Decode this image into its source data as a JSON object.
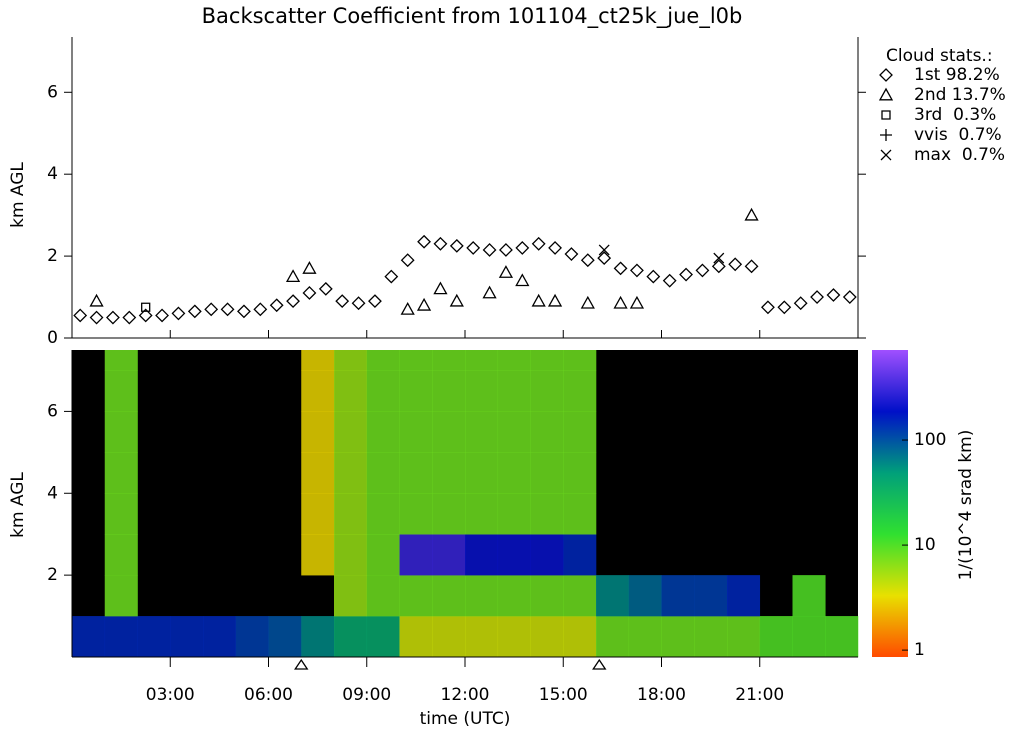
{
  "chart_data": [
    {
      "type": "scatter",
      "title": "Backscatter Coefficient from 101104_ct25k_jue_l0b",
      "ylabel": "km AGL",
      "xlim": [
        0,
        24
      ],
      "xticks": [
        {
          "value": 3,
          "label": "03:00"
        },
        {
          "value": 6,
          "label": "06:00"
        },
        {
          "value": 9,
          "label": "09:00"
        },
        {
          "value": 12,
          "label": "12:00"
        },
        {
          "value": 15,
          "label": "15:00"
        },
        {
          "value": 18,
          "label": "18:00"
        },
        {
          "value": 21,
          "label": "21:00"
        }
      ],
      "ylim": [
        0,
        7.35
      ],
      "yticks": [
        0,
        2,
        4,
        6
      ],
      "legend_title": "Cloud stats.:",
      "legend": "outside right",
      "x": [
        0.25,
        0.75,
        1.25,
        1.75,
        2.25,
        2.75,
        3.25,
        3.75,
        4.25,
        4.75,
        5.25,
        5.75,
        6.25,
        6.75,
        7.25,
        7.75,
        8.25,
        8.75,
        9.25,
        9.75,
        10.25,
        10.75,
        11.25,
        11.75,
        12.25,
        12.75,
        13.25,
        13.75,
        14.25,
        14.75,
        15.25,
        15.75,
        16.25,
        16.75,
        17.25,
        17.75,
        18.25,
        18.75,
        19.25,
        19.75,
        20.25,
        20.75,
        21.25,
        21.75,
        22.25,
        22.75,
        23.25,
        23.75
      ],
      "series": [
        {
          "name": "1st 98.2%",
          "symbol": "diamond",
          "color": "#000000",
          "values": [
            0.55,
            0.5,
            0.5,
            0.5,
            0.55,
            0.55,
            0.6,
            0.65,
            0.7,
            0.7,
            0.65,
            0.7,
            0.8,
            0.9,
            1.1,
            1.2,
            0.9,
            0.85,
            0.9,
            1.5,
            1.9,
            2.35,
            2.3,
            2.25,
            2.2,
            2.15,
            2.15,
            2.2,
            2.3,
            2.2,
            2.05,
            1.9,
            1.95,
            1.7,
            1.65,
            1.5,
            1.4,
            1.55,
            1.65,
            1.75,
            1.8,
            1.75,
            0.75,
            0.75,
            0.85,
            1.0,
            1.05,
            1.0
          ]
        },
        {
          "name": "2nd 13.7%",
          "symbol": "triangle",
          "color": "#000000",
          "values": [
            null,
            0.9,
            null,
            null,
            null,
            null,
            null,
            null,
            null,
            null,
            null,
            null,
            null,
            1.5,
            1.7,
            null,
            null,
            null,
            null,
            null,
            0.7,
            0.8,
            1.2,
            0.9,
            null,
            1.1,
            1.6,
            1.4,
            0.9,
            0.9,
            null,
            0.85,
            null,
            0.85,
            0.85,
            null,
            null,
            null,
            null,
            null,
            null,
            3.0,
            null,
            null,
            null,
            null,
            null,
            null
          ]
        },
        {
          "name": "3rd  0.3%",
          "symbol": "square",
          "color": "#000000",
          "values": [
            null,
            null,
            null,
            null,
            0.75,
            null,
            null,
            null,
            null,
            null,
            null,
            null,
            null,
            null,
            null,
            null,
            null,
            null,
            null,
            null,
            null,
            null,
            null,
            null,
            null,
            null,
            null,
            null,
            null,
            null,
            null,
            null,
            null,
            null,
            null,
            null,
            null,
            null,
            null,
            null,
            null,
            null,
            null,
            null,
            null,
            null,
            null,
            null
          ]
        },
        {
          "name": "vvis  0.7%",
          "symbol": "plus",
          "color": "#000000",
          "values": [
            null,
            null,
            null,
            null,
            null,
            null,
            null,
            null,
            null,
            null,
            null,
            null,
            null,
            null,
            null,
            null,
            null,
            null,
            null,
            null,
            null,
            null,
            null,
            null,
            null,
            null,
            null,
            null,
            null,
            null,
            null,
            null,
            null,
            null,
            null,
            null,
            null,
            null,
            null,
            null,
            null,
            null,
            null,
            null,
            null,
            null,
            null,
            null
          ]
        },
        {
          "name": "max  0.7%",
          "symbol": "cross",
          "color": "#000000",
          "values": [
            null,
            null,
            null,
            null,
            null,
            null,
            null,
            null,
            null,
            null,
            null,
            null,
            null,
            null,
            null,
            null,
            null,
            null,
            null,
            null,
            null,
            null,
            null,
            null,
            null,
            null,
            null,
            null,
            null,
            null,
            null,
            null,
            2.15,
            null,
            null,
            null,
            null,
            null,
            null,
            1.95,
            null,
            null,
            null,
            null,
            null,
            null,
            null,
            null
          ]
        }
      ]
    },
    {
      "type": "heatmap",
      "xlabel": "time (UTC)",
      "ylabel": "km AGL",
      "xlim": [
        0,
        24
      ],
      "xticks": [
        {
          "value": 3,
          "label": "03:00"
        },
        {
          "value": 6,
          "label": "06:00"
        },
        {
          "value": 9,
          "label": "09:00"
        },
        {
          "value": 12,
          "label": "12:00"
        },
        {
          "value": 15,
          "label": "15:00"
        },
        {
          "value": 18,
          "label": "18:00"
        },
        {
          "value": 21,
          "label": "21:00"
        }
      ],
      "ylim": [
        0,
        7.5
      ],
      "yticks": [
        2,
        4,
        6
      ],
      "background": "#000000",
      "x_edges": [
        0,
        1,
        2,
        3,
        4,
        5,
        6,
        7,
        8,
        9,
        10,
        11,
        12,
        13,
        14,
        15,
        16,
        17,
        18,
        19,
        20,
        21,
        22,
        23,
        24
      ],
      "y_edges": [
        0,
        1,
        2,
        3,
        4,
        5,
        6,
        7,
        7.5
      ],
      "values": [
        [
          150,
          150,
          150,
          150,
          150,
          120,
          100,
          60,
          40,
          40,
          4,
          4,
          4,
          4,
          4,
          4,
          8,
          8,
          8,
          8,
          8,
          10,
          10,
          10
        ],
        [
          null,
          8,
          null,
          null,
          null,
          null,
          null,
          null,
          6,
          8,
          8,
          8,
          8,
          8,
          8,
          8,
          60,
          80,
          120,
          120,
          150,
          null,
          10,
          null
        ],
        [
          null,
          8,
          null,
          null,
          null,
          null,
          null,
          3,
          6,
          8,
          300,
          300,
          200,
          200,
          200,
          150,
          null,
          null,
          null,
          null,
          null,
          null,
          null,
          null
        ],
        [
          null,
          8,
          null,
          null,
          null,
          null,
          null,
          3,
          6,
          8,
          8,
          8,
          8,
          8,
          8,
          8,
          null,
          null,
          null,
          null,
          null,
          null,
          null,
          null
        ],
        [
          null,
          8,
          null,
          null,
          null,
          null,
          null,
          3,
          6,
          8,
          8,
          8,
          8,
          8,
          8,
          8,
          null,
          null,
          null,
          null,
          null,
          null,
          null,
          null
        ],
        [
          null,
          8,
          null,
          null,
          null,
          null,
          null,
          3,
          6,
          8,
          8,
          8,
          8,
          8,
          8,
          8,
          null,
          null,
          null,
          null,
          null,
          null,
          null,
          null
        ],
        [
          null,
          8,
          null,
          null,
          null,
          null,
          null,
          3,
          6,
          8,
          8,
          8,
          8,
          8,
          8,
          8,
          null,
          null,
          null,
          null,
          null,
          null,
          null,
          null
        ],
        [
          null,
          8,
          null,
          null,
          null,
          null,
          null,
          3,
          6,
          8,
          8,
          8,
          8,
          8,
          8,
          8,
          null,
          null,
          null,
          null,
          null,
          null,
          null,
          null
        ]
      ],
      "colorbar_label": "1/(10^4 srad km)",
      "clim": [
        0.86,
        720
      ],
      "log_color_scale": true,
      "cticks": [
        1,
        10,
        100
      ],
      "colormap": [
        "#ff4a00",
        "#e8e000",
        "#30e030",
        "#00a07a",
        "#0010c8",
        "#a050ff"
      ],
      "markers_x": [
        7.0,
        16.1
      ]
    }
  ]
}
